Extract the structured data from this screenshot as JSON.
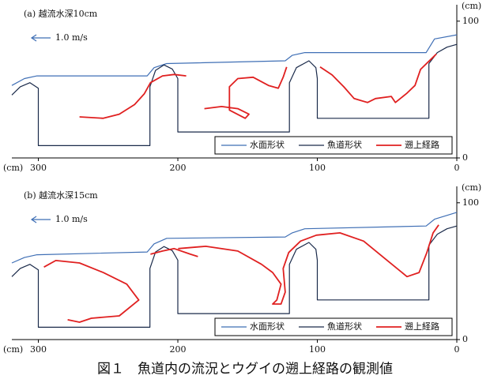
{
  "caption": "図１　魚道内の流況とウグイの遡上経路の観測値",
  "chart_data": [
    {
      "type": "line",
      "title": "(a)  越流水深10cm",
      "annotation": "1.0 m/s",
      "x_unit": "(cm)",
      "y_unit": "(cm)",
      "xlim": [
        319,
        0
      ],
      "xticks": [
        300,
        200,
        100,
        0
      ],
      "ylim": [
        0,
        112
      ],
      "yticks": [
        0,
        100
      ],
      "legend": "lower right",
      "series": [
        {
          "name": "水面形状",
          "color": "#3f6fb5",
          "width": 1.2,
          "x": [
            319,
            310,
            301,
            222,
            217,
            208,
            123,
            118,
            109,
            22,
            16,
            0
          ],
          "values": [
            53,
            58,
            60,
            60,
            66,
            69,
            71,
            75,
            77,
            77,
            87,
            90
          ]
        },
        {
          "name": "魚道形状",
          "color": "#1a2a4a",
          "width": 1.2,
          "x": [
            319,
            313,
            306,
            300,
            300,
            220,
            220,
            216,
            210,
            204,
            200,
            200,
            120,
            120,
            115,
            106,
            101,
            100,
            100,
            20,
            20,
            14,
            7,
            0
          ],
          "values": [
            46,
            52,
            55,
            51,
            9,
            9,
            52,
            64,
            68,
            65,
            58,
            19,
            19,
            55,
            66,
            71,
            66,
            58,
            29,
            29,
            69,
            77,
            81,
            83
          ]
        },
        {
          "name": "遡上経路",
          "color": "#e02020",
          "width": 1.8,
          "x": [
            270.5,
            253.5,
            242,
            231,
            224,
            219.6,
            211,
            202.6,
            194,
            null,
            181,
            168.6,
            157,
            149,
            151.7,
            163,
            163,
            157,
            146,
            135,
            128,
            124.5,
            122,
            null,
            98,
            89.4,
            81,
            73.6,
            64,
            58.3,
            47,
            44,
            35.7,
            30,
            26,
            18.7,
            14.7
          ],
          "values": [
            30,
            29,
            32,
            39,
            47,
            55,
            60,
            61,
            60,
            null,
            36,
            37.6,
            36,
            32,
            29,
            35,
            52,
            58,
            59,
            53,
            51,
            59,
            66.5,
            null,
            66.5,
            60.7,
            52,
            43.4,
            40.5,
            43.4,
            45,
            40.5,
            47.4,
            53,
            64.7,
            72,
            76
          ]
        }
      ]
    },
    {
      "type": "line",
      "title": "(b)  越流水深15cm",
      "annotation": "1.0 m/s",
      "x_unit": "(cm)",
      "y_unit": "(cm)",
      "xlim": [
        319,
        0
      ],
      "xticks": [
        300,
        200,
        100,
        0
      ],
      "ylim": [
        0,
        112
      ],
      "yticks": [
        0,
        100
      ],
      "legend": "lower right",
      "series": [
        {
          "name": "水面形状",
          "color": "#3f6fb5",
          "width": 1.2,
          "x": [
            319,
            310,
            301,
            222,
            217,
            208,
            123,
            118,
            109,
            22,
            16,
            0
          ],
          "values": [
            56,
            60,
            62,
            64,
            70,
            74,
            75,
            78,
            81,
            83,
            88,
            93
          ]
        },
        {
          "name": "魚道形状",
          "color": "#1a2a4a",
          "width": 1.2,
          "x": [
            319,
            313,
            306,
            300,
            300,
            220,
            220,
            216,
            210,
            204,
            200,
            200,
            120,
            120,
            115,
            106,
            101,
            100,
            100,
            20,
            20,
            14,
            7,
            0
          ],
          "values": [
            46,
            52,
            55,
            51,
            9,
            9,
            52,
            64,
            68,
            65,
            58,
            19,
            19,
            55,
            66,
            71,
            66,
            58,
            29,
            29,
            69,
            77,
            81,
            83
          ]
        },
        {
          "name": "遡上経路",
          "color": "#e02020",
          "width": 1.8,
          "x": [
            279,
            270.5,
            262,
            242,
            228,
            236.6,
            253.5,
            270.5,
            287.5,
            296,
            null,
            219.6,
            211,
            202.6,
            191,
            185.6,
            null,
            199.8,
            180,
            157,
            140,
            132,
            126,
            129,
            132,
            126,
            123,
            124.5,
            120.5,
            112,
            100.7,
            83.8,
            66.8,
            49.8,
            35.7,
            27,
            21.5,
            17,
            13
          ],
          "values": [
            14.5,
            12.7,
            15.6,
            17.3,
            28.9,
            40.5,
            49,
            56,
            57.8,
            53,
            null,
            62.4,
            64.7,
            66.5,
            62.4,
            60.7,
            null,
            66.5,
            68.2,
            64.7,
            55,
            49,
            40.5,
            28.9,
            26,
            26,
            34.7,
            52,
            63.6,
            72,
            76.3,
            78,
            72,
            57.8,
            46,
            49,
            63.6,
            78,
            83.8
          ]
        }
      ]
    }
  ]
}
